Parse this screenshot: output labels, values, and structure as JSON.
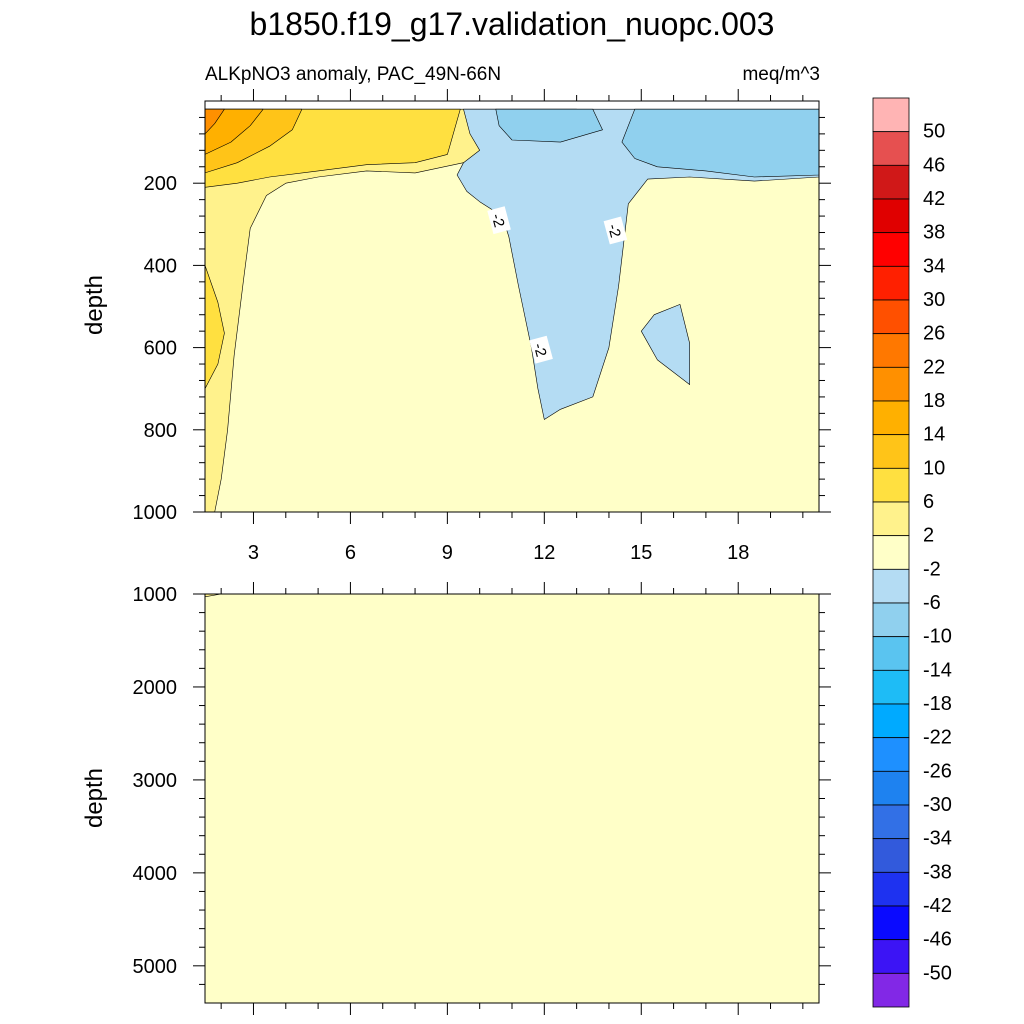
{
  "title": "b1850.f19_g17.validation_nuopc.003",
  "subtitle_left": "ALKpNO3 anomaly, PAC_49N-66N",
  "subtitle_right": "meq/m^3",
  "colors": {
    "background": "#ffffff",
    "axis": "#000000",
    "contour_line": "#000000",
    "level_label_bg": "#ffffff"
  },
  "chart_data": [
    {
      "type": "heatmap",
      "panel": "upper",
      "ylabel": "depth",
      "xlim": [
        1.5,
        20.5
      ],
      "ylim": [
        0,
        1000
      ],
      "y_inverted": true,
      "x_ticks": [
        3,
        6,
        9,
        12,
        15,
        18
      ],
      "x_tick_labels": [
        "3",
        "6",
        "9",
        "12",
        "15",
        "18"
      ],
      "y_ticks": [
        200,
        400,
        600,
        800,
        1000
      ],
      "y_tick_labels": [
        "200",
        "400",
        "600",
        "800",
        "1000"
      ],
      "grid": false,
      "contour_line_labels": [
        {
          "text": "-2",
          "x": 10.6,
          "y": 290
        },
        {
          "text": "-2",
          "x": 14.2,
          "y": 315
        },
        {
          "text": "-2",
          "x": 11.9,
          "y": 605
        }
      ],
      "filled_regions": [
        {
          "level": "-2 to 2",
          "color": "#ffffc8",
          "outline": [
            [
              1.5,
              20
            ],
            [
              20.5,
              20
            ],
            [
              20.5,
              1000
            ],
            [
              1.5,
              1000
            ]
          ]
        },
        {
          "level": "2 to 6",
          "color": "#fff28c",
          "outline": [
            [
              1.5,
              20
            ],
            [
              13.0,
              20
            ],
            [
              13.0,
              105
            ],
            [
              11.0,
              130
            ],
            [
              9.5,
              150
            ],
            [
              8.0,
              175
            ],
            [
              6.5,
              170
            ],
            [
              5.0,
              185
            ],
            [
              4.0,
              200
            ],
            [
              3.4,
              230
            ],
            [
              2.9,
              310
            ],
            [
              2.7,
              430
            ],
            [
              2.4,
              620
            ],
            [
              2.2,
              800
            ],
            [
              2.0,
              920
            ],
            [
              1.8,
              1000
            ],
            [
              1.5,
              1000
            ]
          ]
        },
        {
          "level": "6 to 10",
          "color": "#ffe040",
          "outline": [
            [
              1.5,
              20
            ],
            [
              9.4,
              20
            ],
            [
              9.0,
              130
            ],
            [
              8.0,
              150
            ],
            [
              6.5,
              155
            ],
            [
              5.0,
              170
            ],
            [
              3.5,
              185
            ],
            [
              2.5,
              200
            ],
            [
              1.5,
              210
            ]
          ]
        },
        {
          "level": "6 to 10",
          "color": "#ffe040",
          "outline": [
            [
              1.5,
              400
            ],
            [
              1.9,
              490
            ],
            [
              2.1,
              565
            ],
            [
              1.9,
              640
            ],
            [
              1.5,
              700
            ]
          ]
        },
        {
          "level": "10 to 14",
          "color": "#ffc418",
          "outline": [
            [
              1.5,
              20
            ],
            [
              4.5,
              20
            ],
            [
              4.2,
              70
            ],
            [
              3.5,
              110
            ],
            [
              2.5,
              150
            ],
            [
              1.5,
              175
            ]
          ]
        },
        {
          "level": "14 to 18",
          "color": "#ffb000",
          "outline": [
            [
              1.5,
              20
            ],
            [
              3.3,
              20
            ],
            [
              2.9,
              60
            ],
            [
              2.3,
              100
            ],
            [
              1.5,
              130
            ]
          ]
        },
        {
          "level": "18 to 22",
          "color": "#ff9000",
          "outline": [
            [
              1.5,
              20
            ],
            [
              2.1,
              20
            ],
            [
              1.8,
              55
            ],
            [
              1.5,
              80
            ]
          ]
        },
        {
          "level": "-6 to -2",
          "color": "#b4dcf3",
          "outline": [
            [
              9.5,
              20
            ],
            [
              20.5,
              20
            ],
            [
              20.5,
              185
            ],
            [
              18.5,
              195
            ],
            [
              16.5,
              185
            ],
            [
              15.2,
              190
            ],
            [
              14.6,
              250
            ],
            [
              14.3,
              450
            ],
            [
              14.0,
              600
            ],
            [
              13.5,
              720
            ],
            [
              12.5,
              750
            ],
            [
              12.0,
              775
            ],
            [
              11.8,
              700
            ],
            [
              11.6,
              600
            ],
            [
              11.2,
              450
            ],
            [
              10.9,
              330
            ],
            [
              10.7,
              280
            ],
            [
              10.0,
              245
            ],
            [
              9.6,
              220
            ],
            [
              9.3,
              180
            ],
            [
              9.5,
              150
            ],
            [
              10.0,
              120
            ],
            [
              9.7,
              80
            ]
          ]
        },
        {
          "level": "-6 to -2",
          "color": "#b4dcf3",
          "outline": [
            [
              16.2,
              495
            ],
            [
              16.5,
              590
            ],
            [
              16.5,
              690
            ],
            [
              15.5,
              630
            ],
            [
              15.0,
              560
            ],
            [
              15.4,
              520
            ]
          ]
        },
        {
          "level": "-10 to -6",
          "color": "#90d0ee",
          "outline": [
            [
              10.5,
              20
            ],
            [
              13.5,
              20
            ],
            [
              13.8,
              70
            ],
            [
              12.5,
              100
            ],
            [
              11.0,
              95
            ],
            [
              10.6,
              60
            ]
          ]
        },
        {
          "level": "-10 to -6",
          "color": "#90d0ee",
          "outline": [
            [
              14.8,
              20
            ],
            [
              20.5,
              20
            ],
            [
              20.5,
              180
            ],
            [
              18.5,
              185
            ],
            [
              17.0,
              170
            ],
            [
              15.5,
              160
            ],
            [
              14.8,
              140
            ],
            [
              14.4,
              100
            ]
          ]
        }
      ]
    },
    {
      "type": "heatmap",
      "panel": "lower",
      "ylabel": "depth",
      "xlim": [
        1.5,
        20.5
      ],
      "ylim": [
        1000,
        5400
      ],
      "y_inverted": true,
      "x_ticks": [
        3,
        6,
        9,
        12,
        15,
        18
      ],
      "y_ticks": [
        1000,
        2000,
        3000,
        4000,
        5000
      ],
      "y_tick_labels": [
        "1000",
        "2000",
        "3000",
        "4000",
        "5000"
      ],
      "grid": false,
      "filled_regions": [
        {
          "level": "-2 to 2",
          "color": "#ffffc8",
          "outline": [
            [
              1.5,
              1000
            ],
            [
              20.5,
              1000
            ],
            [
              20.5,
              5400
            ],
            [
              1.5,
              5400
            ]
          ]
        },
        {
          "level": "2 to 6",
          "color": "#fff28c",
          "outline": [
            [
              1.5,
              1000
            ],
            [
              2.0,
              1000
            ],
            [
              1.5,
              1030
            ]
          ]
        }
      ]
    }
  ],
  "colorbar": {
    "labels": [
      "50",
      "46",
      "42",
      "38",
      "34",
      "30",
      "26",
      "22",
      "18",
      "14",
      "10",
      "6",
      "2",
      "-2",
      "-6",
      "-10",
      "-14",
      "-18",
      "-22",
      "-26",
      "-30",
      "-34",
      "-38",
      "-42",
      "-46",
      "-50"
    ],
    "colors": [
      "#ffb4b4",
      "#e65050",
      "#d01818",
      "#e00000",
      "#ff0000",
      "#ff2000",
      "#ff5000",
      "#ff7800",
      "#ff9000",
      "#ffb000",
      "#ffc418",
      "#ffe040",
      "#fff28c",
      "#ffffc8",
      "#b4dcf3",
      "#90d0ee",
      "#5ac4f0",
      "#1ebcf6",
      "#00aaff",
      "#1e90ff",
      "#1e82f0",
      "#3270e6",
      "#325adc",
      "#1e32f0",
      "#0a0aff",
      "#3c14f5",
      "#8228e6"
    ]
  }
}
